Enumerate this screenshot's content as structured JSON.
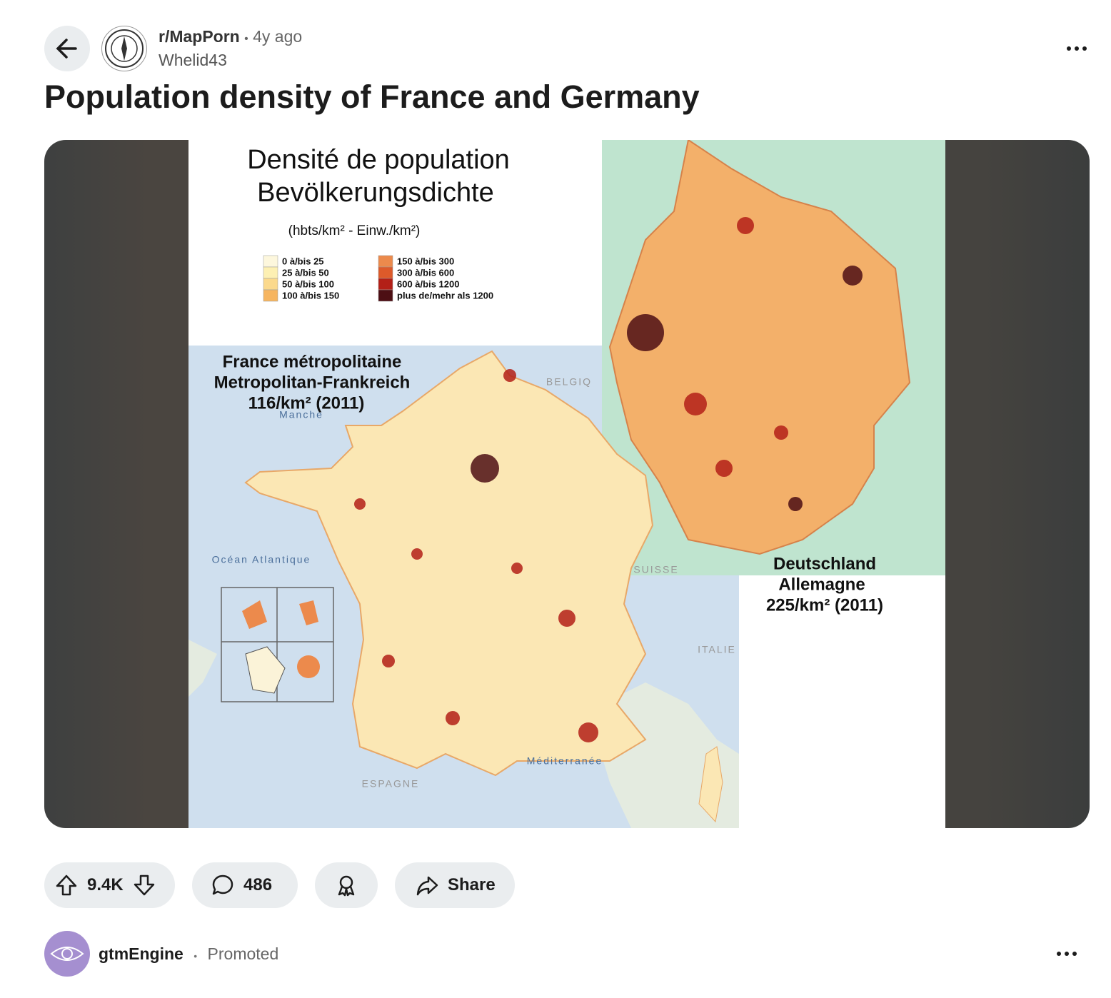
{
  "header": {
    "subreddit": "r/MapPorn",
    "separator": "•",
    "time": "4y ago",
    "author": "Whelid43"
  },
  "post": {
    "title": "Population density of France and Germany"
  },
  "image": {
    "title": [
      "Densité de population",
      "Bevölkerungsdichte"
    ],
    "unit": "(hbts/km² - Einw./km²)",
    "legend": [
      {
        "label": "0 à/bis 25",
        "color": "#fdf7dd"
      },
      {
        "label": "25 à/bis 50",
        "color": "#fdf0b3"
      },
      {
        "label": "50 à/bis 100",
        "color": "#fbd98c"
      },
      {
        "label": "100 à/bis 150",
        "color": "#f6b560"
      },
      {
        "label": "150 à/bis 300",
        "color": "#ec8a4c"
      },
      {
        "label": "300 à/bis 600",
        "color": "#dd5a2a"
      },
      {
        "label": "600 à/bis 1200",
        "color": "#b32017"
      },
      {
        "label": "plus de/mehr als 1200",
        "color": "#4d0f14"
      }
    ],
    "france": [
      "France métropolitaine",
      "Metropolitan-Frankreich",
      "116/km² (2011)"
    ],
    "germany": [
      "Deutschland",
      "Allemagne",
      "225/km² (2011)"
    ],
    "places": [
      "Manche",
      "BELGIQ",
      "Océan Atlantique",
      "SUISSE",
      "ITALIE",
      "Méditerranée",
      "ESPAGNE"
    ]
  },
  "actions": {
    "votes": "9.4K",
    "comments": "486",
    "share": "Share"
  },
  "promoted": {
    "name": "gtmEngine",
    "separator": "•",
    "label": "Promoted"
  }
}
